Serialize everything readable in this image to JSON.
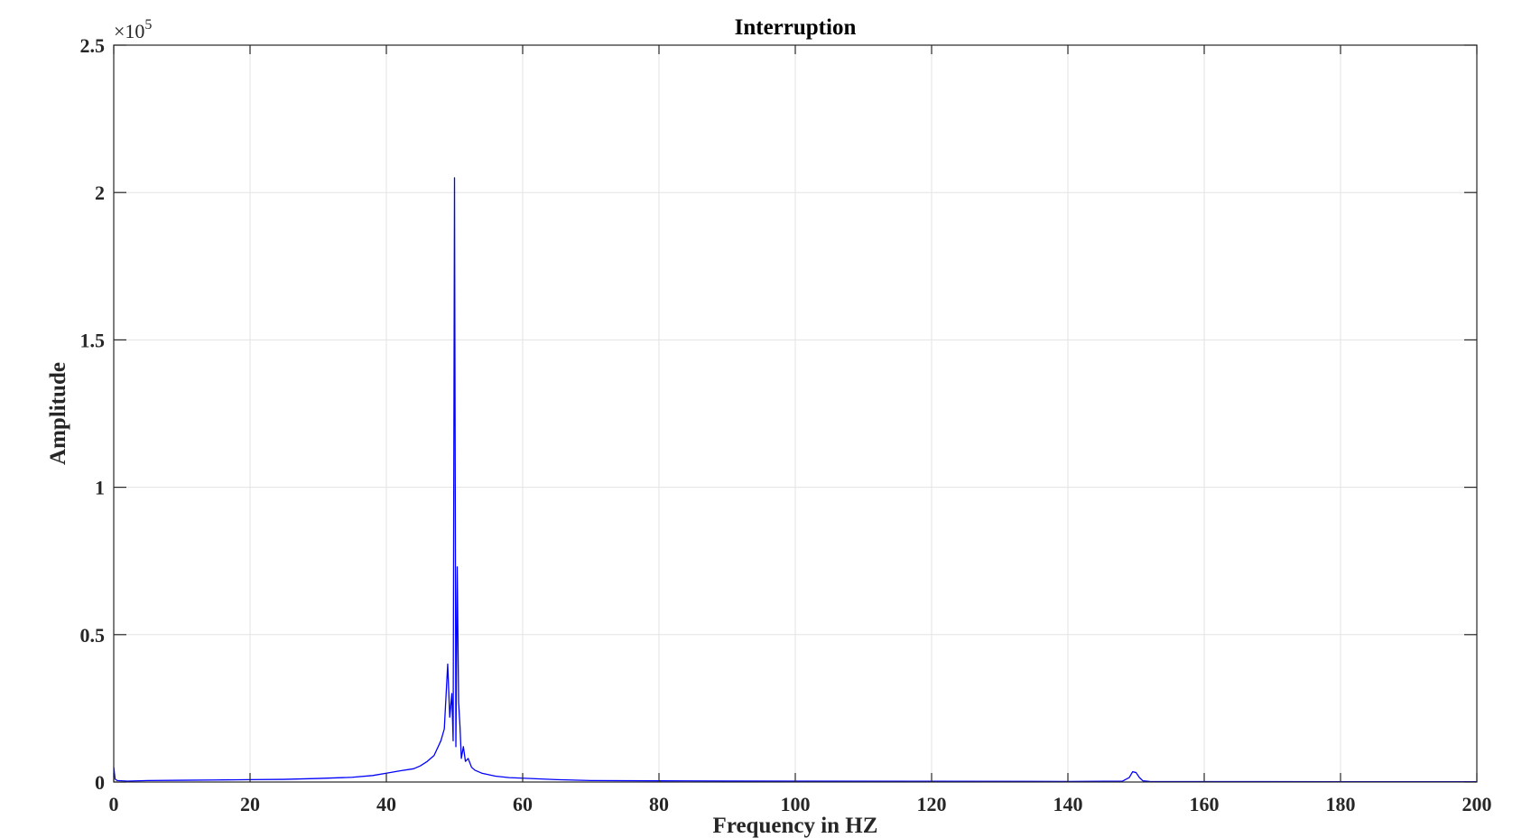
{
  "chart_data": {
    "type": "line",
    "title": "Interruption",
    "xlabel": "Frequency in HZ",
    "ylabel": "Amplitude",
    "xlim": [
      0,
      200
    ],
    "ylim": [
      0,
      250000
    ],
    "x_ticks": [
      0,
      20,
      40,
      60,
      80,
      100,
      120,
      140,
      160,
      180,
      200
    ],
    "x_tick_labels": [
      "0",
      "20",
      "40",
      "60",
      "80",
      "100",
      "120",
      "140",
      "160",
      "180",
      "200"
    ],
    "y_ticks": [
      0,
      50000,
      100000,
      150000,
      200000,
      250000
    ],
    "y_tick_labels": [
      "0",
      "0.5",
      "1",
      "1.5",
      "2",
      "2.5"
    ],
    "y_exponent_base": "×10",
    "y_exponent_power": "5",
    "grid": true,
    "series": [
      {
        "color": "#0000ff",
        "x": [
          0,
          0.2,
          0.5,
          2,
          5,
          10,
          15,
          20,
          25,
          30,
          35,
          38,
          40,
          42,
          44,
          45,
          46,
          47,
          48,
          48.5,
          49,
          49.3,
          49.6,
          49.8,
          50,
          50.2,
          50.4,
          50.6,
          50.8,
          51,
          51.3,
          51.6,
          52,
          52.5,
          53,
          54,
          55,
          56,
          58,
          60,
          65,
          70,
          80,
          90,
          100,
          120,
          140,
          148,
          149,
          149.5,
          150,
          150.5,
          151,
          152,
          160,
          180,
          200
        ],
        "y": [
          5000,
          1000,
          500,
          300,
          500,
          600,
          700,
          800,
          900,
          1200,
          1600,
          2200,
          3000,
          3800,
          4500,
          5500,
          7000,
          9000,
          14000,
          18000,
          40000,
          22000,
          30000,
          14000,
          205000,
          12000,
          73000,
          27000,
          19000,
          8000,
          12000,
          7000,
          8000,
          5000,
          4000,
          3000,
          2500,
          2000,
          1500,
          1300,
          800,
          500,
          400,
          350,
          300,
          250,
          200,
          300,
          1500,
          3500,
          3200,
          1500,
          400,
          200,
          150,
          100,
          100
        ]
      }
    ]
  }
}
